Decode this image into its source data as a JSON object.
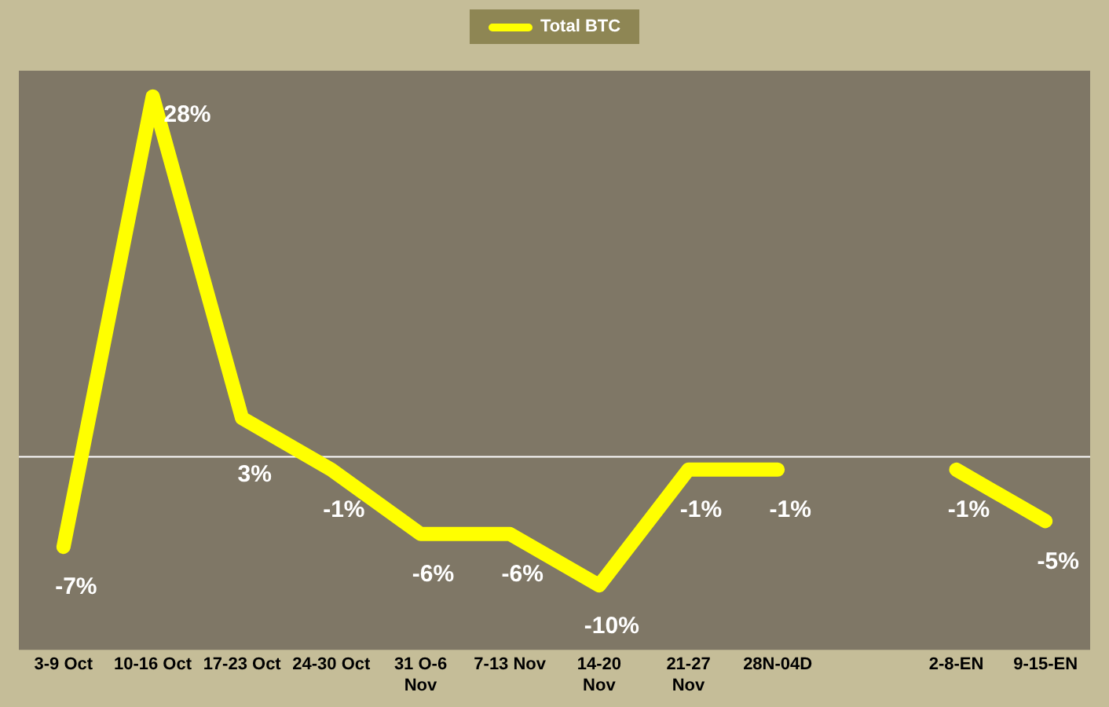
{
  "chart_data": {
    "type": "line",
    "categories": [
      "3-9 Oct",
      "10-16 Oct",
      "17-23 Oct",
      "24-30 Oct",
      "31 O-6\nNov",
      "7-13 Nov",
      "14-20\nNov",
      "21-27\nNov",
      "28N-04D",
      null,
      "2-8-EN",
      "9-15-EN"
    ],
    "series": [
      {
        "name": "Total BTC",
        "color": "#ffff00",
        "values": [
          -7,
          28,
          3,
          -1,
          -6,
          -6,
          -10,
          -1,
          -1,
          null,
          -1,
          -5
        ],
        "value_labels": [
          "-7%",
          "28%",
          "3%",
          "-1%",
          "-6%",
          "-6%",
          "-10%",
          "-1%",
          "-1%",
          null,
          "-1%",
          "-5%"
        ]
      }
    ],
    "legend": "top",
    "grid": false,
    "marker": "none",
    "line_style": "solid"
  }
}
